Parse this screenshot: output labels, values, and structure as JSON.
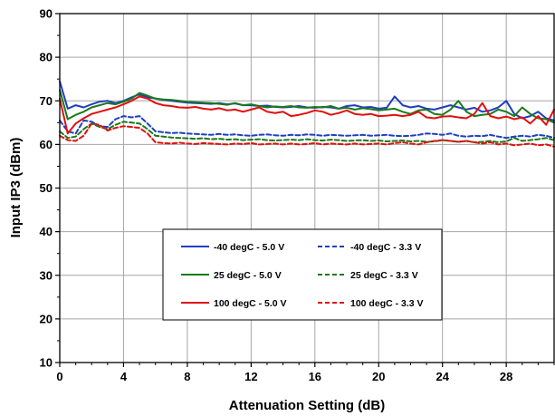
{
  "chart_data": {
    "type": "line",
    "title": "",
    "xlabel": "Attenuation Setting (dB)",
    "ylabel": "Input IP3 (dBm)",
    "xlim": [
      0,
      31
    ],
    "ylim": [
      10,
      90
    ],
    "xticks": [
      0,
      4,
      8,
      12,
      16,
      20,
      24,
      28
    ],
    "yticks": [
      10,
      20,
      30,
      40,
      50,
      60,
      70,
      80,
      90
    ],
    "grid": true,
    "legend_position": "center",
    "x": [
      0,
      0.5,
      1,
      1.5,
      2,
      2.5,
      3,
      3.5,
      4,
      4.5,
      5,
      5.5,
      6,
      6.5,
      7,
      7.5,
      8,
      8.5,
      9,
      9.5,
      10,
      10.5,
      11,
      11.5,
      12,
      12.5,
      13,
      13.5,
      14,
      14.5,
      15,
      15.5,
      16,
      16.5,
      17,
      17.5,
      18,
      18.5,
      19,
      19.5,
      20,
      20.5,
      21,
      21.5,
      22,
      22.5,
      23,
      23.5,
      24,
      24.5,
      25,
      25.5,
      26,
      26.5,
      27,
      27.5,
      28,
      28.5,
      29,
      29.5,
      30,
      30.5,
      31
    ],
    "series": [
      {
        "name": "-40 degC - 5.0 V",
        "color": "#1f3fbf",
        "dash": "solid",
        "values": [
          74.5,
          68.2,
          69.0,
          68.5,
          69.2,
          69.8,
          70.0,
          69.5,
          70.0,
          70.8,
          71.5,
          70.8,
          70.5,
          70.2,
          70.0,
          69.8,
          69.6,
          69.5,
          69.4,
          69.3,
          69.5,
          69.2,
          69.4,
          69.0,
          69.0,
          68.8,
          68.9,
          68.6,
          68.5,
          68.6,
          68.8,
          68.5,
          68.4,
          68.6,
          68.5,
          68.2,
          68.8,
          69.0,
          68.5,
          68.6,
          68.2,
          68.4,
          71.0,
          69.0,
          68.5,
          68.8,
          68.2,
          68.0,
          68.5,
          69.0,
          68.5,
          68.0,
          68.4,
          67.5,
          67.8,
          68.5,
          70.0,
          67.0,
          66.0,
          66.5,
          67.5,
          66.0,
          65.5
        ]
      },
      {
        "name": "-40 degC - 3.3 V",
        "color": "#1f3fbf",
        "dash": "dashed",
        "values": [
          65.5,
          63.0,
          62.5,
          65.5,
          65.2,
          64.2,
          64.0,
          65.8,
          66.5,
          66.2,
          66.5,
          64.8,
          63.0,
          62.8,
          62.6,
          62.7,
          62.5,
          62.4,
          62.3,
          62.2,
          62.4,
          62.2,
          62.3,
          62.1,
          62.0,
          62.2,
          62.3,
          62.1,
          62.0,
          62.2,
          62.1,
          62.3,
          62.2,
          62.0,
          62.2,
          62.1,
          62.0,
          62.1,
          62.2,
          62.0,
          62.1,
          62.2,
          62.0,
          61.9,
          62.0,
          62.2,
          62.5,
          62.4,
          62.2,
          62.5,
          62.0,
          61.8,
          62.0,
          61.9,
          62.2,
          61.8,
          61.5,
          61.8,
          62.0,
          61.8,
          62.2,
          62.0,
          61.5
        ]
      },
      {
        "name": "25 degC - 5.0 V",
        "color": "#1a7a1a",
        "dash": "solid",
        "values": [
          72.5,
          65.8,
          66.8,
          67.5,
          68.5,
          69.0,
          69.5,
          69.2,
          69.8,
          70.5,
          71.8,
          71.2,
          70.5,
          70.3,
          70.2,
          70.0,
          69.8,
          69.7,
          69.6,
          69.5,
          69.3,
          69.1,
          69.5,
          69.0,
          69.2,
          68.8,
          68.5,
          68.7,
          68.6,
          68.8,
          68.5,
          68.4,
          68.6,
          68.5,
          68.8,
          68.2,
          68.4,
          68.0,
          68.3,
          68.1,
          67.8,
          68.0,
          68.2,
          67.5,
          67.0,
          67.8,
          68.0,
          67.0,
          66.8,
          68.0,
          70.0,
          67.5,
          66.5,
          66.8,
          67.0,
          68.0,
          67.5,
          66.5,
          68.5,
          67.0,
          66.0,
          65.8,
          65.0
        ]
      },
      {
        "name": "25 degC - 3.3 V",
        "color": "#1a7a1a",
        "dash": "dashed",
        "values": [
          63.0,
          61.5,
          61.8,
          63.5,
          64.8,
          64.0,
          63.5,
          64.5,
          65.2,
          65.0,
          64.8,
          63.5,
          62.0,
          61.8,
          61.6,
          61.5,
          61.4,
          61.3,
          61.4,
          61.2,
          61.3,
          61.1,
          61.2,
          61.0,
          61.1,
          61.2,
          61.0,
          60.9,
          61.0,
          61.1,
          61.0,
          61.2,
          61.0,
          60.9,
          61.1,
          61.0,
          60.8,
          60.9,
          61.0,
          60.8,
          60.9,
          60.7,
          60.8,
          60.9,
          60.7,
          60.8,
          60.6,
          60.7,
          61.0,
          60.8,
          60.6,
          60.8,
          60.5,
          60.6,
          60.8,
          60.5,
          60.7,
          61.5,
          60.8,
          61.0,
          61.2,
          61.5,
          61.0
        ]
      },
      {
        "name": "100 degC - 5.0 V",
        "color": "#e01010",
        "dash": "solid",
        "values": [
          70.5,
          62.5,
          64.8,
          66.0,
          67.0,
          67.5,
          68.0,
          68.5,
          69.2,
          70.0,
          71.0,
          70.5,
          69.5,
          69.0,
          68.8,
          68.5,
          68.4,
          68.6,
          68.2,
          68.0,
          68.3,
          67.8,
          68.0,
          67.5,
          68.0,
          68.5,
          67.5,
          67.2,
          67.5,
          66.5,
          66.8,
          67.2,
          67.8,
          67.5,
          66.8,
          67.2,
          67.8,
          67.0,
          66.8,
          67.0,
          66.5,
          66.6,
          66.8,
          66.5,
          66.8,
          67.5,
          66.2,
          66.0,
          66.4,
          66.5,
          66.2,
          66.0,
          67.0,
          69.5,
          66.5,
          66.0,
          66.4,
          65.8,
          66.2,
          64.8,
          66.5,
          64.5,
          68.0
        ]
      },
      {
        "name": "100 degC - 3.3 V",
        "color": "#e01010",
        "dash": "dashed",
        "values": [
          62.0,
          61.0,
          60.8,
          62.0,
          64.8,
          64.5,
          63.2,
          63.8,
          64.2,
          64.0,
          63.8,
          62.5,
          60.5,
          60.3,
          60.2,
          60.4,
          60.2,
          60.1,
          60.3,
          60.2,
          60.1,
          60.0,
          60.2,
          60.1,
          60.3,
          60.0,
          60.1,
          60.2,
          60.0,
          60.2,
          60.0,
          60.1,
          60.3,
          60.0,
          60.2,
          60.1,
          60.0,
          60.2,
          60.0,
          60.1,
          60.2,
          60.0,
          60.3,
          60.5,
          60.2,
          60.0,
          60.5,
          60.8,
          61.0,
          60.8,
          60.6,
          60.8,
          60.5,
          60.2,
          60.5,
          60.0,
          60.2,
          59.8,
          60.0,
          60.2,
          59.8,
          60.0,
          59.5
        ]
      }
    ]
  }
}
